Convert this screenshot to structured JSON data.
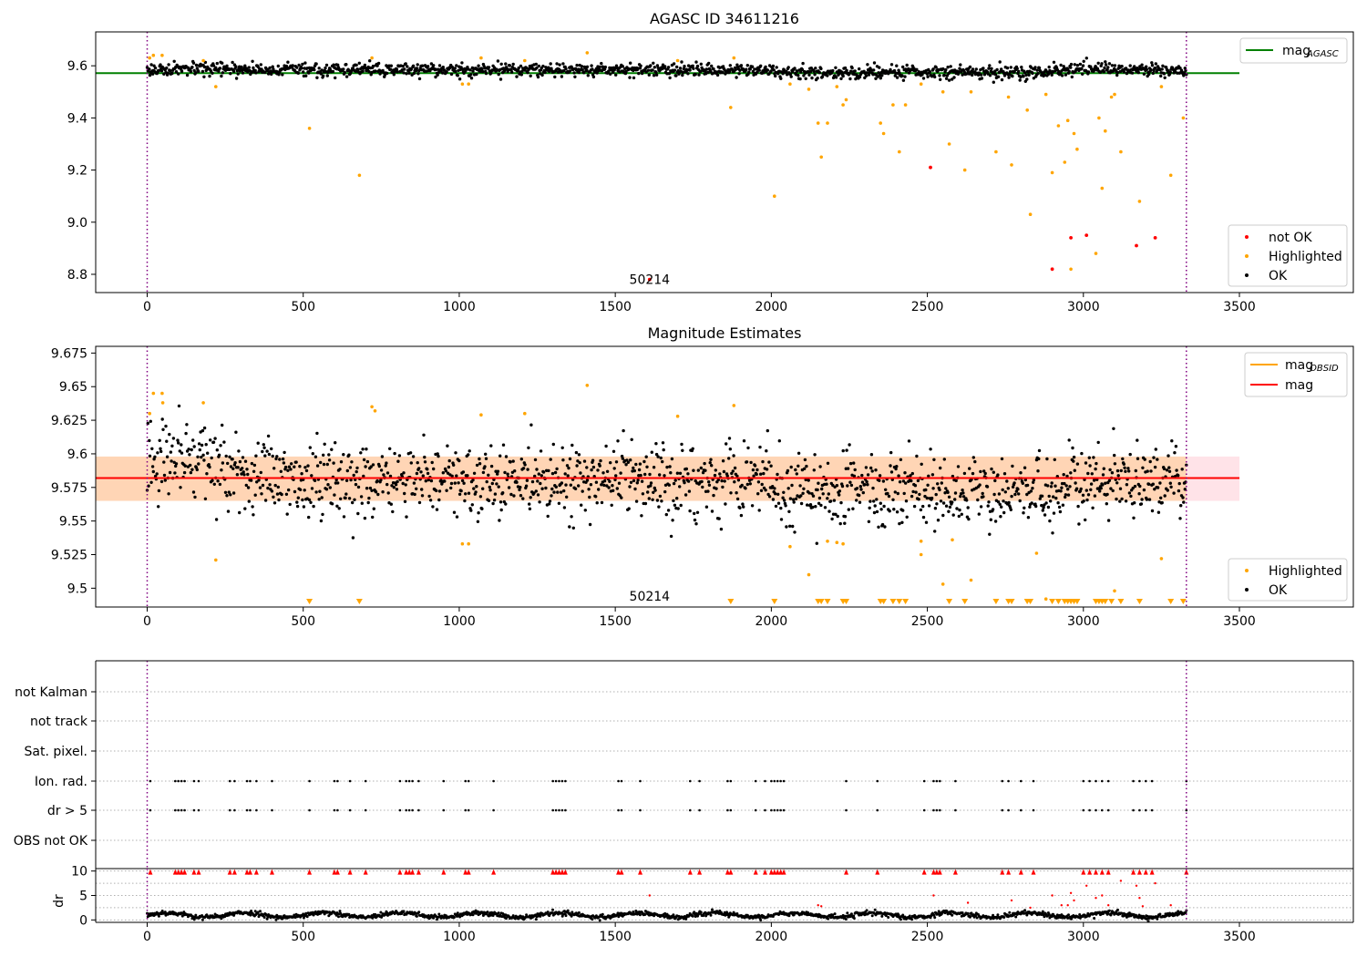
{
  "chart_data": [
    {
      "type": "scatter",
      "title": "AGASC ID 34611216",
      "x_ticks": [
        0,
        500,
        1000,
        1500,
        2000,
        2500,
        3000,
        3500
      ],
      "y_ticks": [
        8.8,
        9.0,
        9.2,
        9.4,
        9.6
      ],
      "xlim": [
        -165,
        3865
      ],
      "ylim": [
        8.73,
        9.73
      ],
      "vlines": [
        0,
        3330
      ],
      "hline": {
        "y": 9.572,
        "x": [
          -165,
          3500
        ],
        "color": "#008000"
      },
      "annotation": {
        "text": "50214",
        "x": 1610,
        "y": 8.78
      },
      "legend_top": [
        {
          "label": "mag",
          "sub": "AGASC",
          "color": "#008000"
        }
      ],
      "legend_bottom": [
        {
          "label": "not OK",
          "color": "#ff0000"
        },
        {
          "label": "Highlighted",
          "color": "#ffa500"
        },
        {
          "label": "OK",
          "color": "#000000"
        }
      ],
      "ok_band": {
        "center": 9.585,
        "spread": 0.012,
        "x_range": [
          0,
          3330
        ]
      },
      "highlighted_points": [
        [
          8,
          9.63
        ],
        [
          20,
          9.64
        ],
        [
          48,
          9.64
        ],
        [
          180,
          9.62
        ],
        [
          220,
          9.52
        ],
        [
          520,
          9.36
        ],
        [
          680,
          9.18
        ],
        [
          720,
          9.63
        ],
        [
          1010,
          9.53
        ],
        [
          1030,
          9.53
        ],
        [
          1070,
          9.63
        ],
        [
          1210,
          9.62
        ],
        [
          1410,
          9.65
        ],
        [
          1700,
          9.62
        ],
        [
          1870,
          9.44
        ],
        [
          1880,
          9.63
        ],
        [
          2010,
          9.1
        ],
        [
          2060,
          9.53
        ],
        [
          2120,
          9.51
        ],
        [
          2150,
          9.38
        ],
        [
          2160,
          9.25
        ],
        [
          2180,
          9.38
        ],
        [
          2210,
          9.52
        ],
        [
          2230,
          9.45
        ],
        [
          2240,
          9.47
        ],
        [
          2350,
          9.38
        ],
        [
          2360,
          9.34
        ],
        [
          2390,
          9.45
        ],
        [
          2410,
          9.27
        ],
        [
          2430,
          9.45
        ],
        [
          2480,
          9.53
        ],
        [
          2550,
          9.5
        ],
        [
          2570,
          9.3
        ],
        [
          2620,
          9.2
        ],
        [
          2640,
          9.5
        ],
        [
          2720,
          9.27
        ],
        [
          2760,
          9.48
        ],
        [
          2770,
          9.22
        ],
        [
          2820,
          9.43
        ],
        [
          2830,
          9.03
        ],
        [
          2880,
          9.49
        ],
        [
          2900,
          9.19
        ],
        [
          2920,
          9.37
        ],
        [
          2940,
          9.23
        ],
        [
          2950,
          9.39
        ],
        [
          2960,
          8.82
        ],
        [
          2970,
          9.34
        ],
        [
          2980,
          9.28
        ],
        [
          3040,
          8.88
        ],
        [
          3050,
          9.4
        ],
        [
          3060,
          9.13
        ],
        [
          3070,
          9.35
        ],
        [
          3090,
          9.48
        ],
        [
          3100,
          9.49
        ],
        [
          3120,
          9.27
        ],
        [
          3180,
          9.08
        ],
        [
          3250,
          9.52
        ],
        [
          3280,
          9.18
        ],
        [
          3320,
          9.4
        ]
      ],
      "not_ok_points": [
        [
          1610,
          8.78
        ],
        [
          2510,
          9.21
        ],
        [
          2900,
          8.82
        ],
        [
          2960,
          8.94
        ],
        [
          3010,
          8.95
        ],
        [
          3170,
          8.91
        ],
        [
          3230,
          8.94
        ]
      ]
    },
    {
      "type": "scatter",
      "title": "Magnitude Estimates",
      "x_ticks": [
        0,
        500,
        1000,
        1500,
        2000,
        2500,
        3000,
        3500
      ],
      "y_ticks": [
        9.5,
        9.525,
        9.55,
        9.575,
        9.6,
        9.625,
        9.65,
        9.675
      ],
      "xlim": [
        -165,
        3865
      ],
      "ylim": [
        9.486,
        9.68
      ],
      "vlines": [
        0,
        3330
      ],
      "mag_line": {
        "y": 9.582,
        "x": [
          -165,
          3500
        ],
        "color": "#ff0000"
      },
      "mag_band": {
        "y": [
          9.565,
          9.598
        ],
        "x": [
          -165,
          3500
        ],
        "color": "#ffc0cb"
      },
      "obsid_band": {
        "y": [
          9.565,
          9.598
        ],
        "x": [
          -165,
          3330
        ],
        "color": "#ffa500"
      },
      "annotation": {
        "text": "50214",
        "x": 1610,
        "y": 9.494
      },
      "legend_top": [
        {
          "label": "mag",
          "sub": "OBSID",
          "color": "#ffa500"
        },
        {
          "label": "mag",
          "sub": "",
          "color": "#ff0000"
        }
      ],
      "legend_bottom": [
        {
          "label": "Highlighted",
          "color": "#ffa500"
        },
        {
          "label": "OK",
          "color": "#000000"
        }
      ],
      "ok_band": {
        "center": 9.58,
        "spread": 0.014,
        "x_range": [
          0,
          3330
        ]
      },
      "highlighted_points": [
        [
          8,
          9.63
        ],
        [
          20,
          9.645
        ],
        [
          48,
          9.645
        ],
        [
          50,
          9.638
        ],
        [
          180,
          9.638
        ],
        [
          220,
          9.521
        ],
        [
          720,
          9.635
        ],
        [
          730,
          9.632
        ],
        [
          1010,
          9.533
        ],
        [
          1030,
          9.533
        ],
        [
          1070,
          9.629
        ],
        [
          1210,
          9.63
        ],
        [
          1410,
          9.651
        ],
        [
          1700,
          9.628
        ],
        [
          1880,
          9.636
        ],
        [
          2060,
          9.531
        ],
        [
          2120,
          9.51
        ],
        [
          2180,
          9.535
        ],
        [
          2210,
          9.534
        ],
        [
          2230,
          9.533
        ],
        [
          2480,
          9.535
        ],
        [
          2480,
          9.525
        ],
        [
          2550,
          9.503
        ],
        [
          2580,
          9.536
        ],
        [
          2640,
          9.506
        ],
        [
          2850,
          9.526
        ],
        [
          2880,
          9.492
        ],
        [
          3100,
          9.498
        ],
        [
          3250,
          9.522
        ]
      ],
      "clipped_x": [
        520,
        680,
        1870,
        2010,
        2150,
        2160,
        2180,
        2230,
        2240,
        2350,
        2360,
        2390,
        2410,
        2430,
        2570,
        2620,
        2720,
        2760,
        2770,
        2820,
        2830,
        2900,
        2920,
        2940,
        2950,
        2960,
        2970,
        2980,
        3040,
        3050,
        3060,
        3070,
        3090,
        3120,
        3180,
        3280,
        3320
      ]
    },
    {
      "type": "scatter",
      "title": "",
      "x_ticks": [
        0,
        500,
        1000,
        1500,
        2000,
        2500,
        3000,
        3500
      ],
      "xlim": [
        -165,
        3865
      ],
      "vlines": [
        0,
        3330
      ],
      "flag_categories": [
        "not Kalman",
        "not track",
        "Sat. pixel.",
        "Ion. rad.",
        "dr > 5",
        "OBS not OK"
      ],
      "flag_x": [
        10,
        90,
        100,
        110,
        120,
        150,
        165,
        265,
        280,
        320,
        330,
        350,
        400,
        520,
        600,
        610,
        650,
        700,
        810,
        830,
        840,
        850,
        870,
        950,
        1020,
        1030,
        1110,
        1300,
        1310,
        1320,
        1330,
        1340,
        1510,
        1520,
        1580,
        1740,
        1770,
        1860,
        1870,
        1950,
        1980,
        2000,
        2010,
        2020,
        2030,
        2040,
        2240,
        2340,
        2490,
        2520,
        2530,
        2540,
        2590,
        2740,
        2760,
        2800,
        2840,
        3000,
        3020,
        3040,
        3060,
        3080,
        3160,
        3180,
        3200,
        3220,
        3330
      ],
      "dr_ylabel": "dr",
      "dr_ticks": [
        0,
        5,
        10
      ],
      "dr_ylim": [
        -0.5,
        10.5
      ],
      "dr_red_points": [
        [
          1610,
          5.0
        ],
        [
          2150,
          3.0
        ],
        [
          2160,
          2.8
        ],
        [
          2520,
          5.0
        ],
        [
          2630,
          3.5
        ],
        [
          2770,
          4.0
        ],
        [
          2830,
          2.5
        ],
        [
          2900,
          5.0
        ],
        [
          2930,
          3.0
        ],
        [
          2950,
          3.0
        ],
        [
          2960,
          5.5
        ],
        [
          2970,
          4.0
        ],
        [
          3010,
          7.0
        ],
        [
          3040,
          4.5
        ],
        [
          3060,
          5.0
        ],
        [
          3080,
          3.0
        ],
        [
          3120,
          8.0
        ],
        [
          3170,
          7.0
        ],
        [
          3180,
          4.5
        ],
        [
          3230,
          7.5
        ],
        [
          3280,
          3.0
        ],
        [
          3190,
          2.8
        ]
      ]
    }
  ]
}
